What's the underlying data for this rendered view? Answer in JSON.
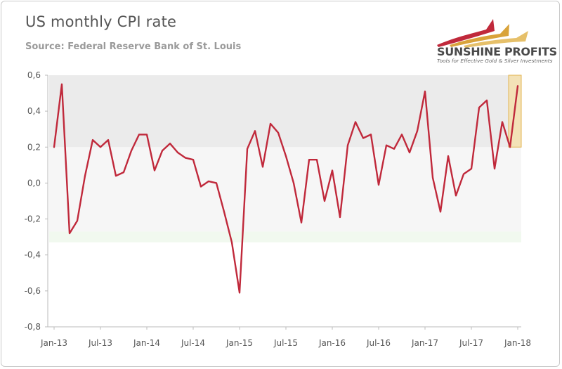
{
  "header": {
    "title": "US monthly CPI rate",
    "subtitle": "Source: Federal Reserve Bank of St. Louis"
  },
  "logo": {
    "name": "SUNSHINE PROFITS",
    "tagline": "Tools for Effective Gold & Silver Investments"
  },
  "colors": {
    "line": "#c0293b",
    "highlight_fill": "#f6dfa5",
    "highlight_border": "#e3b451",
    "band_upper": "#ebebeb",
    "band_middle": "#f6f6f6",
    "band_lower": "#f1f9ef",
    "axis": "#bbbbbb"
  },
  "chart_data": {
    "type": "line",
    "title": "US monthly CPI rate",
    "subtitle": "Source: Federal Reserve Bank of St. Louis",
    "xlabel": "",
    "ylabel": "",
    "ylim": [
      -0.8,
      0.6
    ],
    "yticks": [
      "0,6",
      "0,4",
      "0,2",
      "0,0",
      "-0,2",
      "-0,4",
      "-0,6",
      "-0,8"
    ],
    "ytick_values": [
      0.6,
      0.4,
      0.2,
      0.0,
      -0.2,
      -0.4,
      -0.6,
      -0.8
    ],
    "xticks": [
      "Jan-13",
      "Jul-13",
      "Jan-14",
      "Jul-14",
      "Jan-15",
      "Jul-15",
      "Jan-16",
      "Jul-16",
      "Jan-17",
      "Jul-17",
      "Jan-18"
    ],
    "xtick_month_index": [
      0,
      6,
      12,
      18,
      24,
      30,
      36,
      42,
      48,
      54,
      60
    ],
    "grid": false,
    "bands": [
      {
        "from": 0.2,
        "to": 0.6
      },
      {
        "from": -0.27,
        "to": 0.2
      },
      {
        "from": -0.33,
        "to": -0.27
      }
    ],
    "highlight": {
      "x_from": "Dec-17",
      "x_to": "Jan-18",
      "y_from": 0.2,
      "y_to": 0.6
    },
    "series": [
      {
        "start": "Jan-13",
        "values": [
          0.2,
          0.55,
          -0.28,
          -0.21,
          0.04,
          0.24,
          0.2,
          0.24,
          0.04,
          0.06,
          0.18,
          0.27,
          0.27,
          0.07,
          0.18,
          0.22,
          0.17,
          0.14,
          0.13,
          -0.02,
          0.01,
          0.0,
          -0.16,
          -0.33,
          -0.61,
          0.19,
          0.29,
          0.09,
          0.33,
          0.28,
          0.15,
          0.0,
          -0.22,
          0.13,
          0.13,
          -0.1,
          0.07,
          -0.19,
          0.21,
          0.34,
          0.25,
          0.27,
          -0.01,
          0.21,
          0.19,
          0.27,
          0.17,
          0.29,
          0.51,
          0.03,
          -0.16,
          0.15,
          -0.07,
          0.05,
          0.08,
          0.42,
          0.46,
          0.08,
          0.34,
          0.2,
          0.54
        ]
      }
    ]
  }
}
